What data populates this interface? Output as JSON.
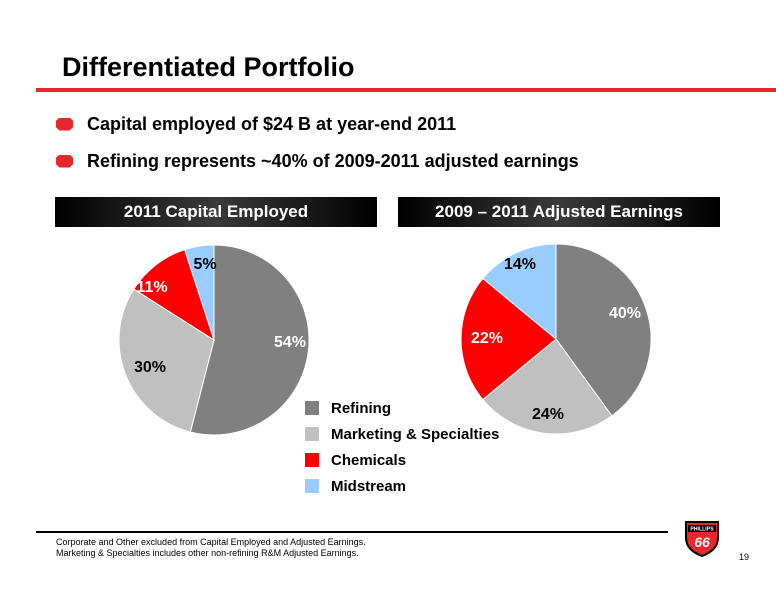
{
  "slide": {
    "title": "Differentiated Portfolio",
    "bullets": [
      "Capital employed of $24 B at year-end 2011",
      "Refining represents ~40% of 2009-2011 adjusted earnings"
    ],
    "banner_left": "2011 Capital Employed",
    "banner_right": "2009 – 2011 Adjusted Earnings",
    "footnote_1": "Corporate and Other excluded from Capital Employed and Adjusted Earnings.",
    "footnote_2": "Marketing & Specialties includes other non-refining R&M Adjusted Earnings.",
    "page_number": "19",
    "logo_top": "PHILLIPS",
    "logo_main": "66"
  },
  "colors": {
    "accent_red": "#e8272c",
    "refining": "#808080",
    "marketing": "#c0c0c0",
    "chemicals": "#ff0000",
    "midstream": "#99ccff"
  },
  "legend": [
    {
      "label": "Refining",
      "color": "#808080"
    },
    {
      "label": "Marketing & Specialties",
      "color": "#c0c0c0"
    },
    {
      "label": "Chemicals",
      "color": "#ff0000"
    },
    {
      "label": "Midstream",
      "color": "#99ccff"
    }
  ],
  "chart_data": [
    {
      "type": "pie",
      "title": "2011 Capital Employed",
      "categories": [
        "Refining",
        "Marketing & Specialties",
        "Chemicals",
        "Midstream"
      ],
      "values": [
        54,
        30,
        11,
        5
      ],
      "labels": [
        "54%",
        "30%",
        "11%",
        "5%"
      ],
      "colors": [
        "#808080",
        "#c0c0c0",
        "#ff0000",
        "#99ccff"
      ]
    },
    {
      "type": "pie",
      "title": "2009 – 2011 Adjusted Earnings",
      "categories": [
        "Refining",
        "Marketing & Specialties",
        "Chemicals",
        "Midstream"
      ],
      "values": [
        40,
        24,
        22,
        14
      ],
      "labels": [
        "40%",
        "24%",
        "22%",
        "14%"
      ],
      "colors": [
        "#808080",
        "#c0c0c0",
        "#ff0000",
        "#99ccff"
      ]
    }
  ]
}
